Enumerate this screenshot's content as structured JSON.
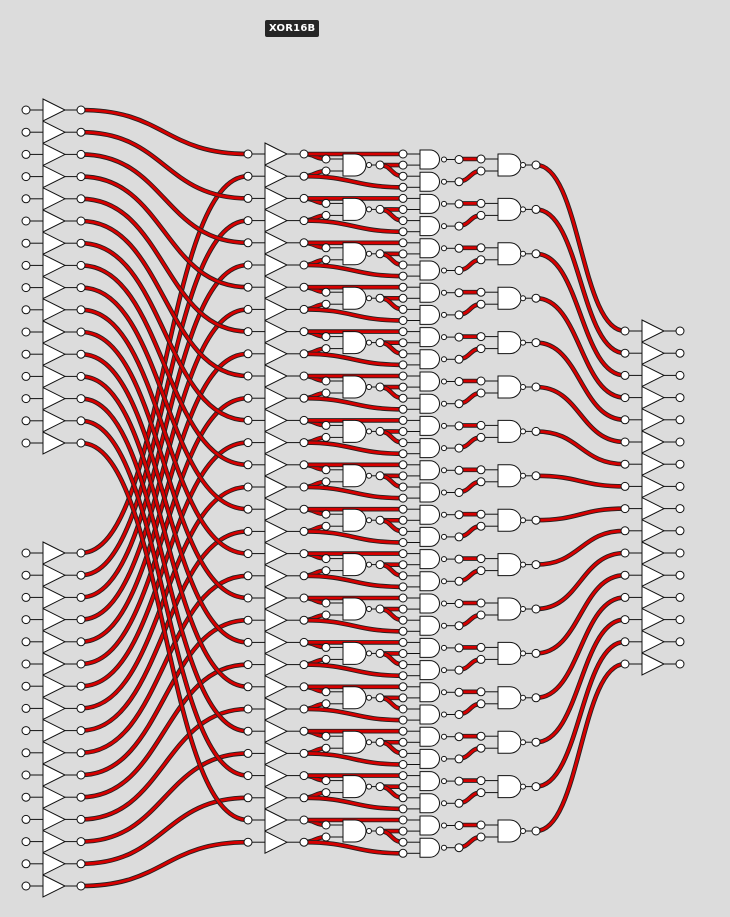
{
  "title": "XOR16B",
  "circuit": {
    "input_a_bits": 16,
    "input_b_bits": 16,
    "output_bits": 16,
    "gate_types": [
      "buffer",
      "nand",
      "and"
    ],
    "wire_color": "#d60000",
    "wire_outline_color": "#222222",
    "gate_fill": "#ffffff",
    "background": "#dcdcdc",
    "label_background": "#262626"
  }
}
